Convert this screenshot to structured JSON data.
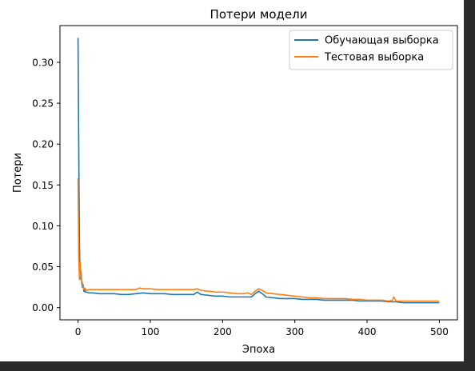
{
  "colors": {
    "train": "#1f77b4",
    "test": "#ff7f0e",
    "frame_background": "#2b2b2b"
  },
  "chart_data": {
    "type": "line",
    "title": "Потери модели",
    "xlabel": "Эпоха",
    "ylabel": "Потери",
    "xlim": [
      -25,
      525
    ],
    "ylim": [
      -0.015,
      0.345
    ],
    "xticks": [
      0,
      100,
      200,
      300,
      400,
      500
    ],
    "xtick_labels": [
      "0",
      "100",
      "200",
      "300",
      "400",
      "500"
    ],
    "yticks": [
      0.0,
      0.05,
      0.1,
      0.15,
      0.2,
      0.25,
      0.3
    ],
    "ytick_labels": [
      "0.00",
      "0.05",
      "0.10",
      "0.15",
      "0.20",
      "0.25",
      "0.30"
    ],
    "grid": false,
    "legend_position": "top-right",
    "series": [
      {
        "name": "Обучающая выборка",
        "color": "#1f77b4",
        "x": [
          0,
          1,
          2,
          3,
          4,
          5,
          6,
          7,
          8,
          9,
          10,
          12,
          15,
          20,
          30,
          40,
          50,
          60,
          70,
          80,
          90,
          100,
          110,
          120,
          130,
          140,
          150,
          160,
          165,
          170,
          180,
          190,
          200,
          210,
          220,
          230,
          240,
          245,
          250,
          255,
          260,
          270,
          280,
          290,
          300,
          310,
          320,
          330,
          340,
          350,
          360,
          370,
          380,
          390,
          400,
          410,
          420,
          430,
          435,
          440,
          450,
          460,
          470,
          480,
          490,
          500
        ],
        "y": [
          0.33,
          0.19,
          0.075,
          0.035,
          0.045,
          0.032,
          0.025,
          0.028,
          0.02,
          0.022,
          0.019,
          0.019,
          0.018,
          0.018,
          0.017,
          0.017,
          0.017,
          0.016,
          0.016,
          0.017,
          0.018,
          0.017,
          0.017,
          0.017,
          0.016,
          0.016,
          0.016,
          0.016,
          0.019,
          0.016,
          0.015,
          0.014,
          0.014,
          0.013,
          0.013,
          0.013,
          0.013,
          0.017,
          0.02,
          0.017,
          0.013,
          0.012,
          0.011,
          0.011,
          0.011,
          0.01,
          0.01,
          0.01,
          0.009,
          0.009,
          0.009,
          0.009,
          0.009,
          0.008,
          0.008,
          0.008,
          0.008,
          0.007,
          0.007,
          0.007,
          0.006,
          0.006,
          0.006,
          0.006,
          0.006,
          0.006
        ]
      },
      {
        "name": "Тестовая выборка",
        "color": "#ff7f0e",
        "x": [
          0,
          1,
          2,
          3,
          4,
          5,
          6,
          7,
          8,
          9,
          10,
          12,
          15,
          20,
          30,
          40,
          50,
          60,
          70,
          80,
          85,
          90,
          100,
          110,
          120,
          130,
          140,
          150,
          160,
          165,
          170,
          180,
          190,
          200,
          210,
          220,
          230,
          235,
          240,
          245,
          250,
          255,
          260,
          270,
          280,
          290,
          300,
          310,
          320,
          330,
          340,
          350,
          360,
          370,
          380,
          390,
          400,
          410,
          420,
          430,
          435,
          437,
          440,
          450,
          460,
          470,
          480,
          490,
          500
        ],
        "y": [
          0.158,
          0.06,
          0.034,
          0.055,
          0.038,
          0.033,
          0.03,
          0.025,
          0.022,
          0.024,
          0.023,
          0.021,
          0.022,
          0.022,
          0.022,
          0.022,
          0.022,
          0.022,
          0.022,
          0.022,
          0.024,
          0.023,
          0.023,
          0.022,
          0.022,
          0.022,
          0.022,
          0.022,
          0.022,
          0.023,
          0.021,
          0.02,
          0.019,
          0.019,
          0.018,
          0.017,
          0.017,
          0.018,
          0.016,
          0.02,
          0.023,
          0.021,
          0.018,
          0.017,
          0.016,
          0.015,
          0.014,
          0.013,
          0.012,
          0.012,
          0.011,
          0.011,
          0.011,
          0.011,
          0.01,
          0.01,
          0.009,
          0.009,
          0.009,
          0.008,
          0.009,
          0.013,
          0.008,
          0.008,
          0.008,
          0.008,
          0.008,
          0.008,
          0.008
        ]
      }
    ]
  }
}
